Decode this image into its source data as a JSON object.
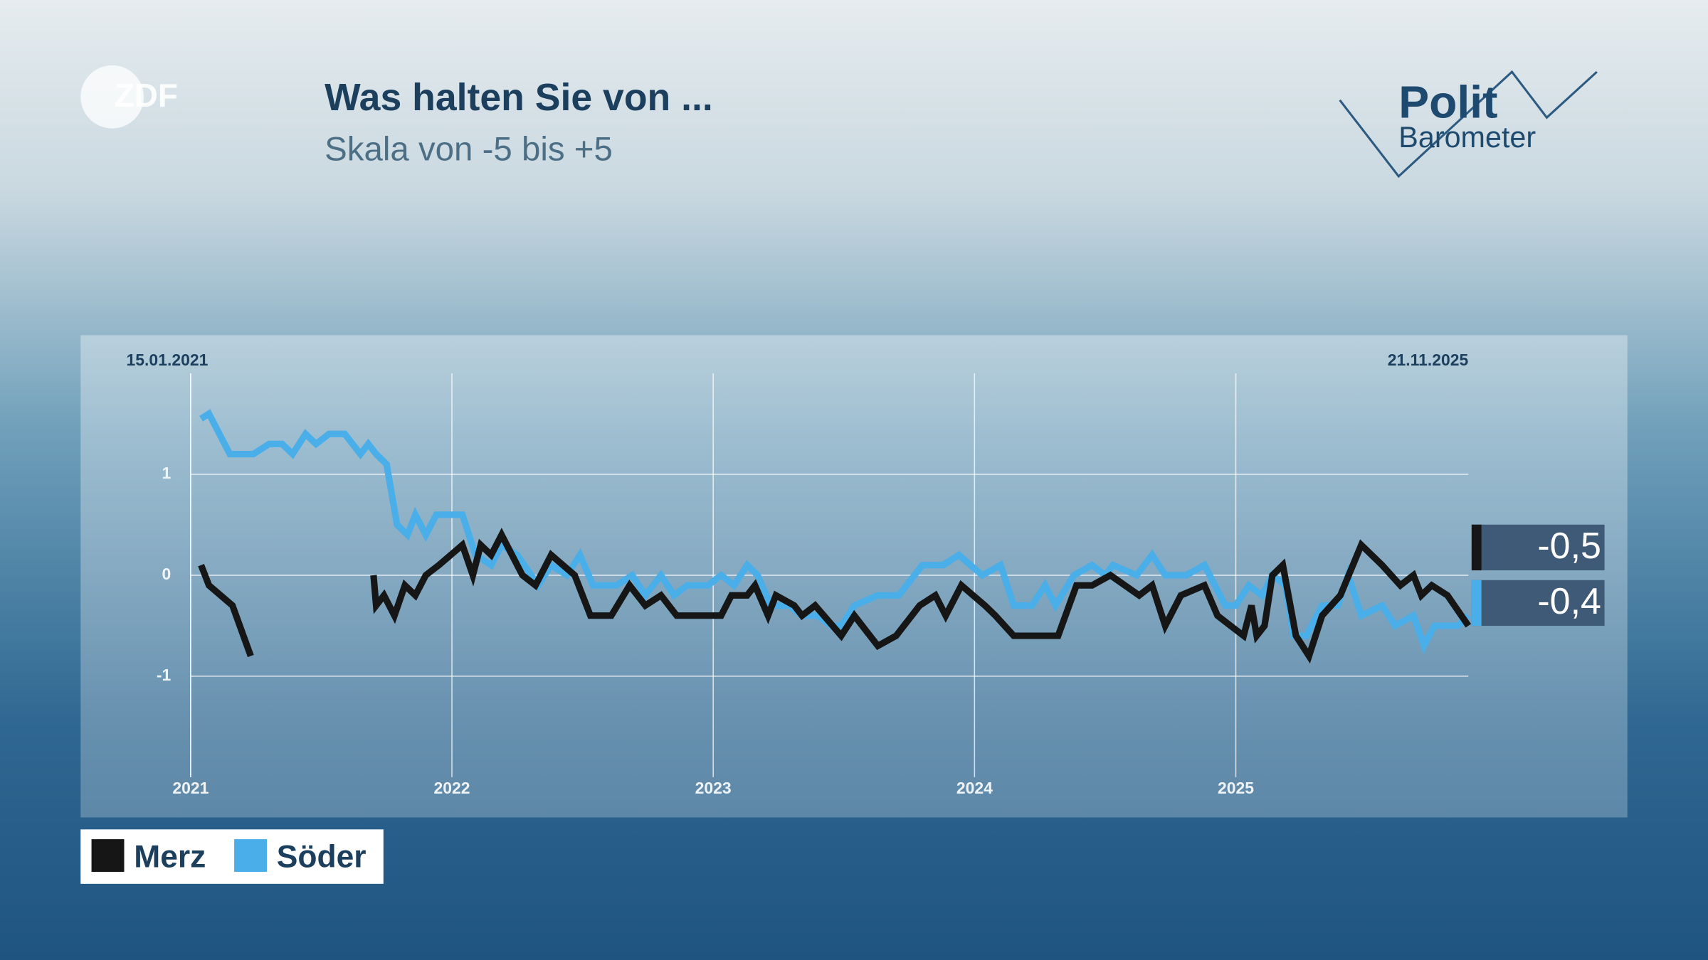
{
  "branding": {
    "channel": "ZDF",
    "program_line1": "Polit",
    "program_line2": "Barometer"
  },
  "chart_data": {
    "type": "line",
    "title": "Was halten Sie von ...",
    "subtitle": "Skala von -5 bis +5",
    "start_label": "15.01.2021",
    "end_label": "21.11.2025",
    "xlim": [
      2021,
      2025.89
    ],
    "xticks": [
      2021,
      2022,
      2023,
      2024,
      2025
    ],
    "ylim": [
      -2,
      2
    ],
    "yticks": [
      -1,
      0,
      1
    ],
    "grid": true,
    "series": [
      {
        "name": "Merz",
        "color": "#161616",
        "x": [
          2021.04,
          2021.07,
          2021.16,
          2021.23,
          2021.5,
          2021.7,
          2021.71,
          2021.74,
          2021.78,
          2021.82,
          2021.86,
          2021.9,
          2021.95,
          2022.04,
          2022.08,
          2022.11,
          2022.15,
          2022.19,
          2022.27,
          2022.32,
          2022.38,
          2022.47,
          2022.53,
          2022.61,
          2022.68,
          2022.74,
          2022.8,
          2022.86,
          2023.03,
          2023.07,
          2023.13,
          2023.16,
          2023.21,
          2023.24,
          2023.31,
          2023.34,
          2023.39,
          2023.49,
          2023.54,
          2023.63,
          2023.7,
          2023.79,
          2023.85,
          2023.89,
          2023.95,
          2024.04,
          2024.08,
          2024.15,
          2024.32,
          2024.39,
          2024.45,
          2024.52,
          2024.63,
          2024.68,
          2024.73,
          2024.79,
          2024.88,
          2024.93,
          2024.98,
          2025.03,
          2025.06,
          2025.08,
          2025.11,
          2025.14,
          2025.18,
          2025.23,
          2025.28,
          2025.33,
          2025.4,
          2025.48,
          2025.56,
          2025.63,
          2025.68,
          2025.71,
          2025.75,
          2025.81,
          2025.89
        ],
        "values": [
          0.1,
          -0.1,
          -0.3,
          -0.8,
          null,
          0,
          -0.3,
          -0.2,
          -0.4,
          -0.1,
          -0.2,
          0,
          0.1,
          0.3,
          0,
          0.3,
          0.2,
          0.4,
          0,
          -0.1,
          0.2,
          0,
          -0.4,
          -0.4,
          -0.1,
          -0.3,
          -0.2,
          -0.4,
          -0.4,
          -0.2,
          -0.2,
          -0.1,
          -0.4,
          -0.2,
          -0.3,
          -0.4,
          -0.3,
          -0.6,
          -0.4,
          -0.7,
          -0.6,
          -0.3,
          -0.2,
          -0.4,
          -0.1,
          -0.3,
          -0.4,
          -0.6,
          -0.6,
          -0.1,
          -0.1,
          0,
          -0.2,
          -0.1,
          -0.5,
          -0.2,
          -0.1,
          -0.4,
          -0.5,
          -0.6,
          -0.3,
          -0.6,
          -0.5,
          0,
          0.1,
          -0.6,
          -0.8,
          -0.4,
          -0.2,
          0.3,
          0.1,
          -0.1,
          0,
          -0.2,
          -0.1,
          -0.2,
          -0.5
        ],
        "value_labels": [
          null,
          null,
          null,
          null,
          null,
          null,
          null,
          null,
          null,
          null,
          null,
          null,
          null,
          null,
          null,
          null,
          null,
          null,
          null,
          null,
          null,
          null,
          null,
          null,
          null,
          null,
          null,
          null,
          null,
          null,
          null,
          null,
          null,
          null,
          null,
          null,
          null,
          null,
          null,
          null,
          null,
          null,
          null,
          null,
          null,
          null,
          null,
          null,
          null,
          null,
          null,
          null,
          null,
          null,
          null,
          null,
          null,
          null,
          null,
          null,
          null,
          null,
          null,
          null,
          null,
          null,
          null,
          null,
          null,
          null,
          null,
          null,
          null,
          null,
          null,
          null,
          "-0,5"
        ]
      },
      {
        "name": "Söder",
        "color": "#4aaee8",
        "x": [
          2021.04,
          2021.07,
          2021.15,
          2021.24,
          2021.3,
          2021.35,
          2021.39,
          2021.44,
          2021.48,
          2021.53,
          2021.59,
          2021.65,
          2021.68,
          2021.71,
          2021.75,
          2021.79,
          2021.83,
          2021.86,
          2021.9,
          2021.94,
          2022.04,
          2022.09,
          2022.15,
          2022.19,
          2022.25,
          2022.33,
          2022.38,
          2022.44,
          2022.49,
          2022.54,
          2022.63,
          2022.69,
          2022.74,
          2022.8,
          2022.85,
          2022.9,
          2022.98,
          2023.03,
          2023.08,
          2023.13,
          2023.17,
          2023.22,
          2023.29,
          2023.34,
          2023.4,
          2023.45,
          2023.49,
          2023.54,
          2023.63,
          2023.71,
          2023.8,
          2023.88,
          2023.94,
          2024.03,
          2024.1,
          2024.15,
          2024.22,
          2024.27,
          2024.31,
          2024.38,
          2024.45,
          2024.5,
          2024.53,
          2024.62,
          2024.68,
          2024.73,
          2024.81,
          2024.88,
          2024.96,
          2025.0,
          2025.05,
          2025.1,
          2025.14,
          2025.19,
          2025.22,
          2025.27,
          2025.33,
          2025.39,
          2025.43,
          2025.48,
          2025.56,
          2025.61,
          2025.68,
          2025.72,
          2025.76,
          2025.85,
          2025.89
        ],
        "values": [
          1.55,
          1.6,
          1.2,
          1.2,
          1.3,
          1.3,
          1.2,
          1.4,
          1.3,
          1.4,
          1.4,
          1.2,
          1.3,
          1.2,
          1.1,
          0.5,
          0.4,
          0.6,
          0.4,
          0.6,
          0.6,
          0.2,
          0.1,
          0.3,
          0.2,
          -0.1,
          0.1,
          0,
          0.2,
          -0.1,
          -0.1,
          0,
          -0.2,
          0,
          -0.2,
          -0.1,
          -0.1,
          0,
          -0.1,
          0.1,
          0,
          -0.3,
          -0.3,
          -0.4,
          -0.4,
          -0.5,
          -0.5,
          -0.3,
          -0.2,
          -0.2,
          0.1,
          0.1,
          0.2,
          0,
          0.1,
          -0.3,
          -0.3,
          -0.1,
          -0.3,
          0,
          0.1,
          0,
          0.1,
          0,
          0.2,
          0,
          0,
          0.1,
          -0.3,
          -0.3,
          -0.1,
          -0.2,
          0,
          -0.1,
          -0.6,
          -0.6,
          -0.3,
          -0.3,
          0,
          -0.4,
          -0.3,
          -0.5,
          -0.4,
          -0.7,
          -0.5,
          -0.5,
          -0.4
        ],
        "value_labels": [
          null,
          null,
          null,
          null,
          null,
          null,
          null,
          null,
          null,
          null,
          null,
          null,
          null,
          null,
          null,
          null,
          null,
          null,
          null,
          null,
          null,
          null,
          null,
          null,
          null,
          null,
          null,
          null,
          null,
          null,
          null,
          null,
          null,
          null,
          null,
          null,
          null,
          null,
          null,
          null,
          null,
          null,
          null,
          null,
          null,
          null,
          null,
          null,
          null,
          null,
          null,
          null,
          null,
          null,
          null,
          null,
          null,
          null,
          null,
          null,
          null,
          null,
          null,
          null,
          null,
          null,
          null,
          null,
          null,
          null,
          null,
          null,
          null,
          null,
          null,
          null,
          null,
          null,
          null,
          null,
          null,
          null,
          null,
          null,
          null,
          null,
          "-0,4"
        ]
      }
    ]
  }
}
